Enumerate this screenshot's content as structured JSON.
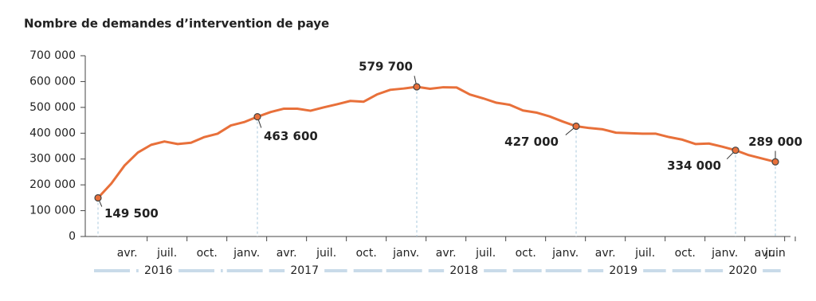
{
  "chart_data": {
    "type": "line",
    "title": "Nombre de demandes d’intervention de paye",
    "categories": [
      null,
      "avr.",
      null,
      null,
      "juil.",
      null,
      null,
      "oct.",
      null,
      null,
      "janv.",
      null,
      null,
      "avr.",
      null,
      null,
      "juil.",
      null,
      null,
      "oct.",
      null,
      null,
      "janv.",
      null,
      null,
      "avr.",
      null,
      null,
      "juil.",
      null,
      null,
      "oct.",
      null,
      null,
      "janv.",
      null,
      null,
      "avr.",
      null,
      null,
      "juil.",
      null,
      null,
      "oct.",
      null,
      null,
      "janv.",
      null,
      null,
      "avr.",
      null,
      "juin"
    ],
    "years": [
      "2016",
      "2017",
      "2018",
      "2019",
      "2020"
    ],
    "series": [
      {
        "name": "Demandes",
        "color": "#e8703a",
        "values": [
          149500,
          205000,
          275000,
          325000,
          355000,
          368000,
          358000,
          363000,
          385000,
          398000,
          430000,
          443000,
          463600,
          482000,
          495000,
          495000,
          487000,
          500000,
          512000,
          525000,
          522000,
          550000,
          568000,
          573000,
          579700,
          572000,
          578000,
          577000,
          550000,
          535000,
          518000,
          510000,
          488000,
          480000,
          465000,
          445000,
          427000,
          420000,
          415000,
          402000,
          400000,
          398000,
          398000,
          385000,
          375000,
          358000,
          360000,
          348000,
          334000,
          315000,
          302000,
          289000
        ],
        "value_labels": [
          "149 500",
          null,
          null,
          null,
          null,
          null,
          null,
          null,
          null,
          null,
          null,
          null,
          "463 600",
          null,
          null,
          null,
          null,
          null,
          null,
          null,
          null,
          null,
          null,
          null,
          "579 700",
          null,
          null,
          null,
          null,
          null,
          null,
          null,
          null,
          null,
          null,
          null,
          "427 000",
          null,
          null,
          null,
          null,
          null,
          null,
          null,
          null,
          null,
          null,
          null,
          "334 000",
          null,
          null,
          "289 000"
        ]
      }
    ],
    "ylim": [
      0,
      700000
    ],
    "yticks": [
      0,
      {
        "value": 100000,
        "label": "100 000"
      },
      {
        "value": 200000,
        "label": "200 000"
      },
      {
        "value": 300000,
        "label": "300 000"
      },
      {
        "value": 400000,
        "label": "400 000"
      },
      {
        "value": 500000,
        "label": "500 000"
      },
      {
        "value": 600000,
        "label": "600 000"
      },
      {
        "value": 700000,
        "label": "700 000"
      }
    ]
  }
}
